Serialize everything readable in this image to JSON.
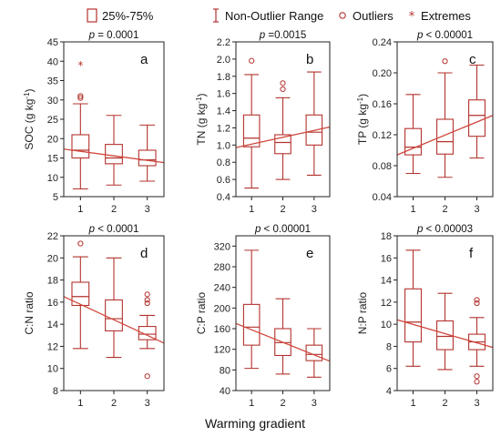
{
  "legend": {
    "box": "25%-75%",
    "range": "Non-Outlier Range",
    "outliers": "Outliers",
    "extremes": "Extremes"
  },
  "x_title": "Warming gradient",
  "colors": {
    "box": "#b3332e",
    "trend": "#d0473d",
    "frame": "#222222"
  },
  "chart_data": [
    {
      "type": "box",
      "letter": "a",
      "p_label": "p = 0.0001",
      "p_italic": "p",
      "p_rest": " = 0.0001",
      "ylabel": "SOC (g kg-1)",
      "ylabel_main": "SOC (g kg",
      "ylabel_sup": "-1",
      "ylabel_end": ")",
      "ylim": [
        5,
        45
      ],
      "yticks": [
        5,
        10,
        15,
        20,
        25,
        30,
        35,
        40,
        45
      ],
      "ytick_labels": [
        "5",
        "10",
        "15",
        "20",
        "25",
        "30",
        "35",
        "40",
        "45"
      ],
      "categories": [
        "1",
        "2",
        "3"
      ],
      "boxes": [
        {
          "min": 7,
          "q1": 15,
          "median": 17,
          "q3": 21,
          "max": 29,
          "outliers": [
            30.5,
            31
          ],
          "extremes": [
            39
          ]
        },
        {
          "min": 8,
          "q1": 13.5,
          "median": 15,
          "q3": 18.5,
          "max": 26,
          "outliers": [],
          "extremes": []
        },
        {
          "min": 9,
          "q1": 13,
          "median": 14.5,
          "q3": 17,
          "max": 23.5,
          "outliers": [],
          "extremes": []
        }
      ],
      "trend": [
        17.3,
        13.8
      ]
    },
    {
      "type": "box",
      "letter": "b",
      "p_label": "p =0.0015",
      "p_italic": "p",
      "p_rest": " =0.0015",
      "ylabel": "TN (g kg-1)",
      "ylabel_main": "TN (g kg",
      "ylabel_sup": "-1",
      "ylabel_end": ")",
      "ylim": [
        0.4,
        2.2
      ],
      "yticks": [
        0.4,
        0.6,
        0.8,
        1.0,
        1.2,
        1.4,
        1.6,
        1.8,
        2.0,
        2.2
      ],
      "ytick_labels": [
        "0.4",
        "0.6",
        "0.8",
        "1.0",
        "1.2",
        "1.4",
        "1.6",
        "1.8",
        "2.0",
        "2.2"
      ],
      "categories": [
        "1",
        "2",
        "3"
      ],
      "boxes": [
        {
          "min": 0.5,
          "q1": 0.98,
          "median": 1.08,
          "q3": 1.35,
          "max": 1.82,
          "outliers": [
            1.98
          ],
          "extremes": []
        },
        {
          "min": 0.6,
          "q1": 0.9,
          "median": 1.03,
          "q3": 1.12,
          "max": 1.55,
          "outliers": [
            1.65,
            1.72
          ],
          "extremes": []
        },
        {
          "min": 0.65,
          "q1": 1.0,
          "median": 1.15,
          "q3": 1.35,
          "max": 1.85,
          "outliers": [],
          "extremes": []
        }
      ],
      "trend": [
        0.97,
        1.21
      ]
    },
    {
      "type": "box",
      "letter": "c",
      "p_label": "p < 0.00001",
      "p_italic": "p",
      "p_rest": " < 0.00001",
      "ylabel": "TP (g kg-1)",
      "ylabel_main": "TP (g kg",
      "ylabel_sup": "-1",
      "ylabel_end": ")",
      "ylim": [
        0.04,
        0.24
      ],
      "yticks": [
        0.04,
        0.08,
        0.12,
        0.16,
        0.2,
        0.24
      ],
      "ytick_labels": [
        "0.04",
        "0.08",
        "0.12",
        "0.16",
        "0.20",
        "0.24"
      ],
      "categories": [
        "1",
        "2",
        "3"
      ],
      "boxes": [
        {
          "min": 0.07,
          "q1": 0.094,
          "median": 0.104,
          "q3": 0.128,
          "max": 0.172,
          "outliers": [],
          "extremes": []
        },
        {
          "min": 0.065,
          "q1": 0.095,
          "median": 0.111,
          "q3": 0.14,
          "max": 0.2,
          "outliers": [
            0.215
          ],
          "extremes": []
        },
        {
          "min": 0.09,
          "q1": 0.118,
          "median": 0.145,
          "q3": 0.165,
          "max": 0.21,
          "outliers": [],
          "extremes": []
        }
      ],
      "trend": [
        0.094,
        0.145
      ]
    },
    {
      "type": "box",
      "letter": "d",
      "p_label": "p < 0.0001",
      "p_italic": "p",
      "p_rest": " < 0.0001",
      "ylabel": "C:N ratio",
      "ylabel_main": "C:N ratio",
      "ylabel_sup": "",
      "ylabel_end": "",
      "ylim": [
        8,
        22
      ],
      "yticks": [
        8,
        10,
        12,
        14,
        16,
        18,
        20,
        22
      ],
      "ytick_labels": [
        "8",
        "10",
        "12",
        "14",
        "16",
        "18",
        "20",
        "22"
      ],
      "categories": [
        "1",
        "2",
        "3"
      ],
      "boxes": [
        {
          "min": 11.8,
          "q1": 15.7,
          "median": 16.5,
          "q3": 17.8,
          "max": 20.1,
          "outliers": [
            21.3
          ],
          "extremes": []
        },
        {
          "min": 11,
          "q1": 13.4,
          "median": 14.5,
          "q3": 16.2,
          "max": 20,
          "outliers": [],
          "extremes": []
        },
        {
          "min": 11.8,
          "q1": 12.6,
          "median": 13.1,
          "q3": 13.8,
          "max": 14.8,
          "outliers": [
            15.9,
            16.2,
            16.7,
            9.3
          ],
          "extremes": []
        }
      ],
      "trend": [
        16.5,
        12.3
      ]
    },
    {
      "type": "box",
      "letter": "e",
      "p_label": "p < 0.00001",
      "p_italic": "p",
      "p_rest": " < 0.00001",
      "ylabel": "C:P ratio",
      "ylabel_main": "C:P ratio",
      "ylabel_sup": "",
      "ylabel_end": "",
      "ylim": [
        40,
        340
      ],
      "yticks": [
        40,
        80,
        120,
        160,
        200,
        240,
        280,
        320
      ],
      "ytick_labels": [
        "40",
        "80",
        "120",
        "160",
        "200",
        "240",
        "280",
        "320"
      ],
      "categories": [
        "1",
        "2",
        "3"
      ],
      "boxes": [
        {
          "min": 83,
          "q1": 128,
          "median": 163,
          "q3": 207,
          "max": 312,
          "outliers": [],
          "extremes": []
        },
        {
          "min": 72,
          "q1": 108,
          "median": 133,
          "q3": 160,
          "max": 218,
          "outliers": [],
          "extremes": []
        },
        {
          "min": 66,
          "q1": 98,
          "median": 110,
          "q3": 128,
          "max": 160,
          "outliers": [],
          "extremes": []
        }
      ],
      "trend": [
        170,
        97
      ]
    },
    {
      "type": "box",
      "letter": "f",
      "p_label": "p < 0.00003",
      "p_italic": "p",
      "p_rest": " < 0.00003",
      "ylabel": "N:P ratio",
      "ylabel_main": "N:P ratio",
      "ylabel_sup": "",
      "ylabel_end": "",
      "ylim": [
        4,
        18
      ],
      "yticks": [
        4,
        6,
        8,
        10,
        12,
        14,
        16,
        18
      ],
      "ytick_labels": [
        "4",
        "6",
        "8",
        "10",
        "12",
        "14",
        "16",
        "18"
      ],
      "categories": [
        "1",
        "2",
        "3"
      ],
      "boxes": [
        {
          "min": 6.2,
          "q1": 8.4,
          "median": 10.2,
          "q3": 13.2,
          "max": 16.7,
          "outliers": [],
          "extremes": []
        },
        {
          "min": 5.9,
          "q1": 7.7,
          "median": 8.9,
          "q3": 10.3,
          "max": 12.8,
          "outliers": [],
          "extremes": []
        },
        {
          "min": 6.2,
          "q1": 7.7,
          "median": 8.4,
          "q3": 9.1,
          "max": 10.6,
          "outliers": [
            11.9,
            12.2,
            5.3,
            4.8
          ],
          "extremes": []
        }
      ],
      "trend": [
        10.4,
        7.9
      ]
    }
  ]
}
